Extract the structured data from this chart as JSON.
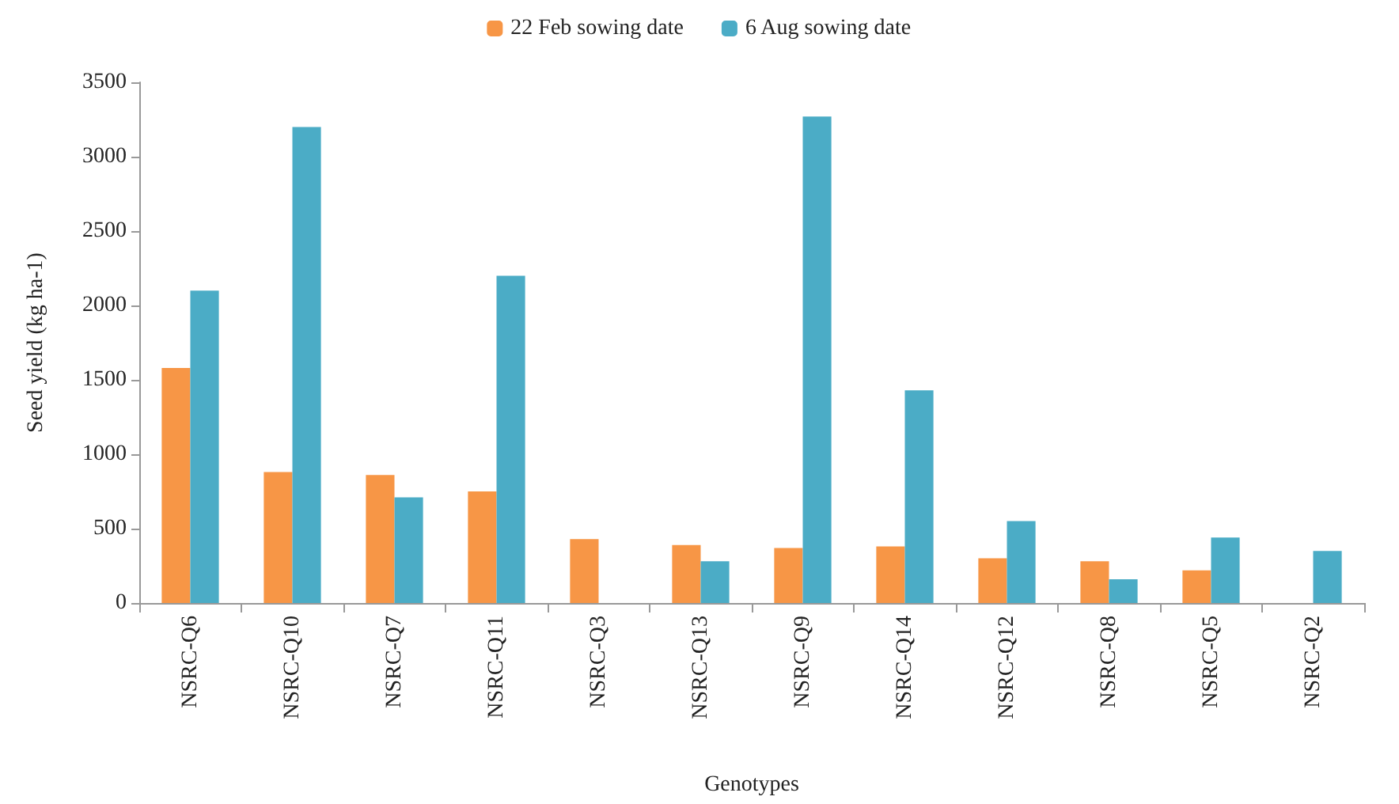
{
  "chart_data": {
    "type": "bar",
    "xlabel": "Genotypes",
    "ylabel": "Seed yield (kg ha-1)",
    "categories": [
      "NSRC-Q6",
      "NSRC-Q10",
      "NSRC-Q7",
      "NSRC-Q11",
      "NSRC-Q3",
      "NSRC-Q13",
      "NSRC-Q9",
      "NSRC-Q14",
      "NSRC-Q12",
      "NSRC-Q8",
      "NSRC-Q5",
      "NSRC-Q2"
    ],
    "series": [
      {
        "name": "22 Feb sowing date",
        "color": "#f79646",
        "values": [
          1580,
          880,
          860,
          750,
          430,
          390,
          370,
          380,
          300,
          280,
          220,
          null
        ]
      },
      {
        "name": "6 Aug sowing date",
        "color": "#4bacc6",
        "values": [
          2100,
          3200,
          710,
          2200,
          null,
          280,
          3270,
          1430,
          550,
          160,
          440,
          350
        ]
      }
    ],
    "ylim": [
      0,
      3500
    ],
    "yticks": [
      0,
      500,
      1000,
      1500,
      2000,
      2500,
      3000,
      3500
    ],
    "grid": false,
    "legend": "top"
  }
}
